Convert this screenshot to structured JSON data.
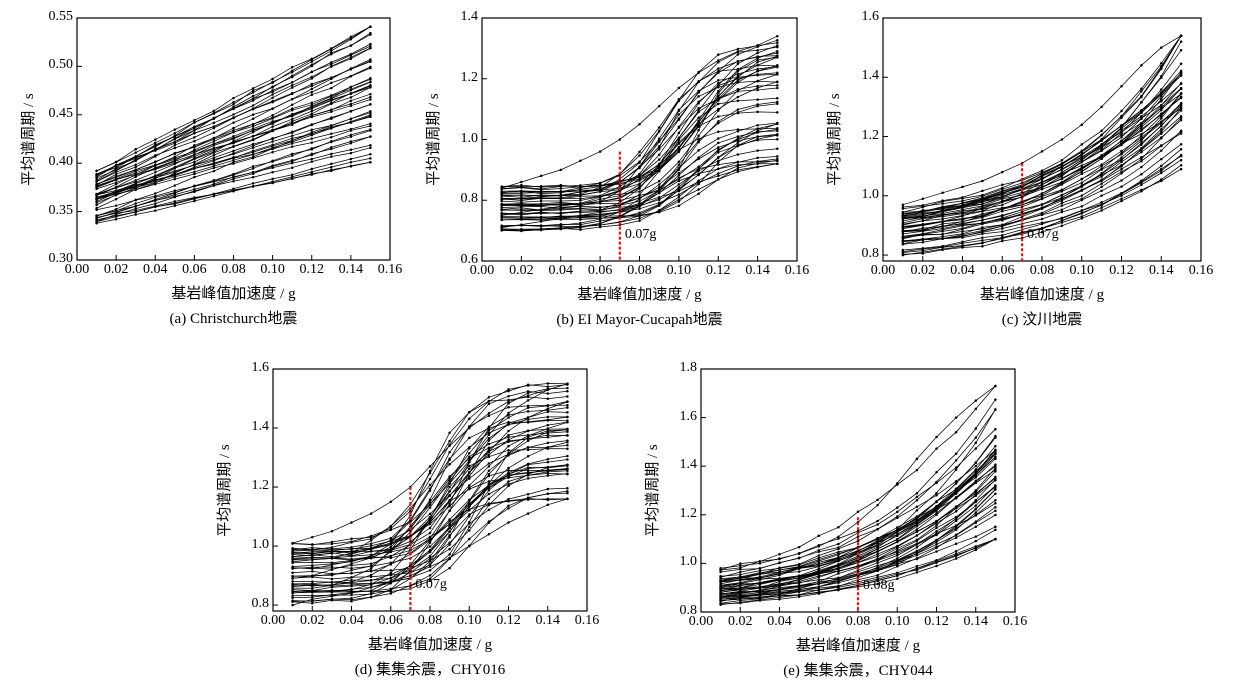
{
  "figure": {
    "colors": {
      "lines": "#000000",
      "threshold": "#e8170f",
      "background": "#ffffff"
    }
  },
  "chart_data": [
    {
      "type": "line",
      "caption": "(a) Christchurch地震",
      "xlabel": "基岩峰值加速度 / g",
      "ylabel": "平均谱周期 / s",
      "xlim": [
        0.0,
        0.16
      ],
      "ylim": [
        0.3,
        0.55
      ],
      "xticks": [
        "0.00",
        "0.02",
        "0.04",
        "0.06",
        "0.08",
        "0.10",
        "0.12",
        "0.14",
        "0.16"
      ],
      "yticks": [
        "0.30",
        "0.35",
        "0.40",
        "0.45",
        "0.50",
        "0.55"
      ],
      "x": [
        0.01,
        0.02,
        0.03,
        0.04,
        0.05,
        0.06,
        0.07,
        0.08,
        0.09,
        0.1,
        0.11,
        0.12,
        0.13,
        0.14,
        0.15
      ],
      "curves": {
        "count": 44,
        "model": "linear",
        "start_range": [
          0.338,
          0.392
        ],
        "end_range": [
          0.401,
          0.541
        ]
      },
      "series_examples": [
        {
          "values": [
            0.392,
            0.401,
            0.411,
            0.421,
            0.431,
            0.442,
            0.452,
            0.463,
            0.473,
            0.484,
            0.494,
            0.505,
            0.516,
            0.528,
            0.541
          ]
        },
        {
          "values": [
            0.365,
            0.37,
            0.375,
            0.38,
            0.386,
            0.391,
            0.397,
            0.403,
            0.409,
            0.416,
            0.422,
            0.429,
            0.436,
            0.443,
            0.45
          ]
        },
        {
          "values": [
            0.338,
            0.342,
            0.347,
            0.351,
            0.356,
            0.361,
            0.366,
            0.371,
            0.376,
            0.381,
            0.386,
            0.391,
            0.396,
            0.401,
            0.405
          ]
        }
      ],
      "threshold": null
    },
    {
      "type": "line",
      "caption": "(b) EI Mayor-Cucapah地震",
      "xlabel": "基岩峰值加速度 / g",
      "ylabel": "平均谱周期 / s",
      "xlim": [
        0.0,
        0.16
      ],
      "ylim": [
        0.6,
        1.4
      ],
      "xticks": [
        "0.00",
        "0.02",
        "0.04",
        "0.06",
        "0.08",
        "0.10",
        "0.12",
        "0.14",
        "0.16"
      ],
      "yticks": [
        "0.6",
        "0.8",
        "1.0",
        "1.2",
        "1.4"
      ],
      "x": [
        0.01,
        0.02,
        0.03,
        0.04,
        0.05,
        0.06,
        0.07,
        0.08,
        0.09,
        0.1,
        0.11,
        0.12,
        0.13,
        0.14,
        0.15
      ],
      "curves": {
        "count": 44,
        "model": "sigmoid",
        "start_range": [
          0.7,
          0.85
        ],
        "end_range": [
          0.92,
          1.34
        ],
        "midpoint_range": [
          0.085,
          0.115
        ]
      },
      "series_examples": [
        {
          "values": [
            0.84,
            0.86,
            0.88,
            0.9,
            0.93,
            0.96,
            1.0,
            1.05,
            1.11,
            1.17,
            1.22,
            1.26,
            1.29,
            1.31,
            1.34
          ]
        },
        {
          "values": [
            0.75,
            0.76,
            0.77,
            0.78,
            0.79,
            0.81,
            0.83,
            0.87,
            0.92,
            0.99,
            1.05,
            1.1,
            1.14,
            1.17,
            1.19
          ]
        },
        {
          "values": [
            0.71,
            0.72,
            0.73,
            0.74,
            0.75,
            0.76,
            0.77,
            0.79,
            0.81,
            0.83,
            0.86,
            0.88,
            0.9,
            0.91,
            0.92
          ]
        }
      ],
      "threshold": {
        "x": 0.07,
        "y_top": 0.96,
        "label": "0.07g"
      }
    },
    {
      "type": "line",
      "caption": "(c) 汶川地震",
      "xlabel": "基岩峰值加速度 / g",
      "ylabel": "平均谱周期 / s",
      "xlim": [
        0.0,
        0.16
      ],
      "ylim": [
        0.78,
        1.6
      ],
      "xticks": [
        "0.00",
        "0.02",
        "0.04",
        "0.06",
        "0.08",
        "0.10",
        "0.12",
        "0.14",
        "0.16"
      ],
      "yticks": [
        "0.8",
        "1.0",
        "1.2",
        "1.4",
        "1.6"
      ],
      "x": [
        0.01,
        0.02,
        0.03,
        0.04,
        0.05,
        0.06,
        0.07,
        0.08,
        0.09,
        0.1,
        0.11,
        0.12,
        0.13,
        0.14,
        0.15
      ],
      "curves": {
        "count": 44,
        "model": "convex",
        "start_range": [
          0.8,
          0.97
        ],
        "end_range": [
          1.09,
          1.54
        ]
      },
      "series_examples": [
        {
          "values": [
            0.97,
            0.99,
            1.01,
            1.03,
            1.05,
            1.08,
            1.11,
            1.15,
            1.19,
            1.24,
            1.3,
            1.37,
            1.44,
            1.5,
            1.54
          ]
        },
        {
          "values": [
            0.86,
            0.87,
            0.88,
            0.89,
            0.91,
            0.92,
            0.94,
            0.96,
            0.99,
            1.02,
            1.05,
            1.09,
            1.13,
            1.17,
            1.21
          ]
        },
        {
          "values": [
            0.8,
            0.81,
            0.82,
            0.83,
            0.84,
            0.86,
            0.87,
            0.89,
            0.91,
            0.93,
            0.96,
            0.99,
            1.02,
            1.05,
            1.09
          ]
        }
      ],
      "threshold": {
        "x": 0.07,
        "y_top": 1.11,
        "label": "0.07g"
      }
    },
    {
      "type": "line",
      "caption": "(d) 集集余震，CHY016",
      "xlabel": "基岩峰值加速度 / g",
      "ylabel": "平均谱周期 / s",
      "xlim": [
        0.0,
        0.16
      ],
      "ylim": [
        0.78,
        1.6
      ],
      "xticks": [
        "0.00",
        "0.02",
        "0.04",
        "0.06",
        "0.08",
        "0.10",
        "0.12",
        "0.14",
        "0.16"
      ],
      "yticks": [
        "0.8",
        "1.0",
        "1.2",
        "1.4",
        "1.6"
      ],
      "x": [
        0.01,
        0.02,
        0.03,
        0.04,
        0.05,
        0.06,
        0.07,
        0.08,
        0.09,
        0.1,
        0.11,
        0.12,
        0.13,
        0.14,
        0.15
      ],
      "curves": {
        "count": 44,
        "model": "sigmoid",
        "start_range": [
          0.8,
          1.01
        ],
        "end_range": [
          1.16,
          1.55
        ],
        "midpoint_range": [
          0.075,
          0.105
        ]
      },
      "series_examples": [
        {
          "values": [
            1.01,
            1.03,
            1.05,
            1.08,
            1.11,
            1.15,
            1.2,
            1.27,
            1.34,
            1.4,
            1.45,
            1.49,
            1.51,
            1.53,
            1.55
          ]
        },
        {
          "values": [
            0.89,
            0.9,
            0.92,
            0.94,
            0.96,
            0.99,
            1.03,
            1.09,
            1.17,
            1.25,
            1.31,
            1.36,
            1.39,
            1.41,
            1.42
          ]
        },
        {
          "values": [
            0.8,
            0.82,
            0.83,
            0.84,
            0.86,
            0.88,
            0.9,
            0.93,
            0.96,
            1.0,
            1.04,
            1.08,
            1.11,
            1.14,
            1.16
          ]
        }
      ],
      "threshold": {
        "x": 0.07,
        "y_top": 1.2,
        "label": "0.07g"
      }
    },
    {
      "type": "line",
      "caption": "(e) 集集余震，CHY044",
      "xlabel": "基岩峰值加速度 / g",
      "ylabel": "平均谱周期 / s",
      "xlim": [
        0.0,
        0.16
      ],
      "ylim": [
        0.8,
        1.8
      ],
      "xticks": [
        "0.00",
        "0.02",
        "0.04",
        "0.06",
        "0.08",
        "0.10",
        "0.12",
        "0.14",
        "0.16"
      ],
      "yticks": [
        "0.8",
        "1.0",
        "1.2",
        "1.4",
        "1.6",
        "1.8"
      ],
      "x": [
        0.01,
        0.02,
        0.03,
        0.04,
        0.05,
        0.06,
        0.07,
        0.08,
        0.09,
        0.1,
        0.11,
        0.12,
        0.13,
        0.14,
        0.15
      ],
      "curves": {
        "count": 44,
        "model": "convex",
        "start_range": [
          0.83,
          0.98
        ],
        "end_range": [
          1.1,
          1.73
        ]
      },
      "series_examples": [
        {
          "values": [
            0.98,
            0.99,
            1.0,
            1.02,
            1.04,
            1.07,
            1.11,
            1.17,
            1.24,
            1.33,
            1.43,
            1.52,
            1.6,
            1.67,
            1.73
          ]
        },
        {
          "values": [
            0.9,
            0.91,
            0.92,
            0.93,
            0.94,
            0.96,
            0.98,
            1.01,
            1.05,
            1.09,
            1.14,
            1.2,
            1.27,
            1.34,
            1.4
          ]
        },
        {
          "values": [
            0.83,
            0.84,
            0.85,
            0.86,
            0.87,
            0.88,
            0.89,
            0.91,
            0.93,
            0.95,
            0.98,
            1.01,
            1.04,
            1.07,
            1.1
          ]
        }
      ],
      "threshold": {
        "x": 0.08,
        "y_top": 1.19,
        "label": "0.08g"
      }
    }
  ]
}
